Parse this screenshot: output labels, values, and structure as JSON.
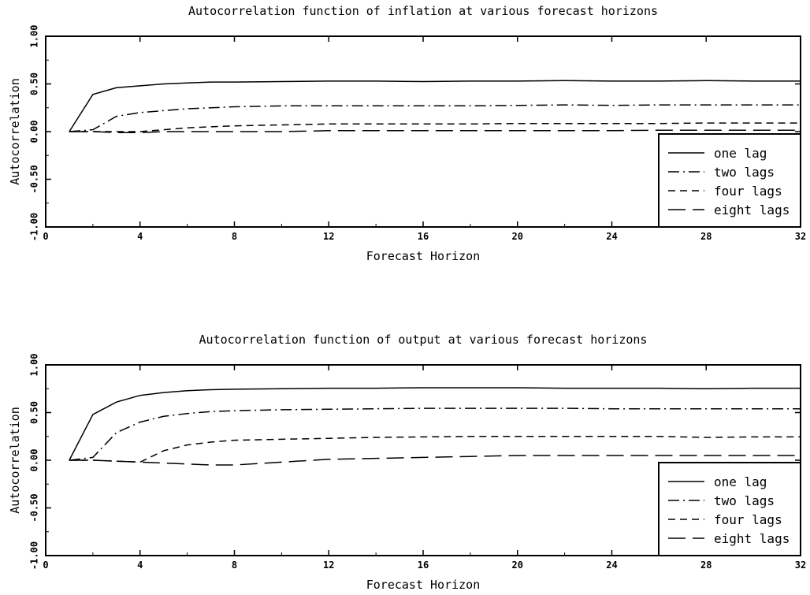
{
  "chart_data": [
    {
      "type": "line",
      "title": "Autocorrelation function of inflation at various forecast horizons",
      "xlabel": "Forecast Horizon",
      "ylabel": "Autocorrelation",
      "xlim": [
        0,
        32
      ],
      "ylim": [
        -1.0,
        1.0
      ],
      "xticks": [
        0,
        4,
        8,
        12,
        16,
        20,
        24,
        28,
        32
      ],
      "xtick_labels": [
        "0",
        "4",
        "8",
        "12",
        "16",
        "20",
        "24",
        "28",
        "32"
      ],
      "yticks": [
        -1.0,
        -0.5,
        0.0,
        0.5,
        1.0
      ],
      "ytick_labels": [
        "-1.00",
        "-0.50",
        "0.00",
        "0.50",
        "1.00"
      ],
      "grid": false,
      "legend_position": "bottom-right",
      "series": [
        {
          "name": "one lag",
          "dash": "solid",
          "x": [
            1,
            2,
            3,
            4,
            5,
            6,
            7,
            8,
            10,
            12,
            14,
            16,
            18,
            20,
            22,
            24,
            26,
            28,
            30,
            32
          ],
          "values": [
            0.0,
            0.39,
            0.46,
            0.48,
            0.5,
            0.51,
            0.52,
            0.52,
            0.525,
            0.53,
            0.53,
            0.525,
            0.53,
            0.53,
            0.535,
            0.53,
            0.53,
            0.535,
            0.53,
            0.53
          ]
        },
        {
          "name": "two lags",
          "dash": "dashdot",
          "x": [
            1,
            2,
            3,
            4,
            5,
            6,
            7,
            8,
            10,
            12,
            14,
            16,
            18,
            20,
            22,
            24,
            26,
            28,
            30,
            32
          ],
          "values": [
            0.0,
            0.02,
            0.16,
            0.2,
            0.22,
            0.24,
            0.25,
            0.26,
            0.27,
            0.27,
            0.27,
            0.27,
            0.27,
            0.275,
            0.28,
            0.275,
            0.28,
            0.28,
            0.28,
            0.28
          ]
        },
        {
          "name": "four lags",
          "dash": "dashed",
          "x": [
            1,
            2,
            3,
            4,
            5,
            6,
            7,
            8,
            10,
            12,
            14,
            16,
            18,
            20,
            22,
            24,
            26,
            28,
            30,
            32
          ],
          "values": [
            0.0,
            0.0,
            0.0,
            0.0,
            0.02,
            0.04,
            0.05,
            0.06,
            0.07,
            0.08,
            0.08,
            0.08,
            0.08,
            0.085,
            0.085,
            0.085,
            0.085,
            0.09,
            0.09,
            0.09
          ]
        },
        {
          "name": "eight lags",
          "dash": "longdash",
          "x": [
            1,
            2,
            3,
            4,
            5,
            6,
            7,
            8,
            10,
            12,
            14,
            16,
            18,
            20,
            22,
            24,
            26,
            28,
            30,
            32
          ],
          "values": [
            0.0,
            0.0,
            -0.01,
            -0.01,
            0.0,
            0.0,
            0.0,
            0.0,
            0.0,
            0.01,
            0.01,
            0.01,
            0.01,
            0.01,
            0.01,
            0.01,
            0.015,
            0.015,
            0.015,
            0.015
          ]
        }
      ]
    },
    {
      "type": "line",
      "title": "Autocorrelation function of output at various forecast horizons",
      "xlabel": "Forecast Horizon",
      "ylabel": "Autocorrelation",
      "xlim": [
        0,
        32
      ],
      "ylim": [
        -1.0,
        1.0
      ],
      "xticks": [
        0,
        4,
        8,
        12,
        16,
        20,
        24,
        28,
        32
      ],
      "xtick_labels": [
        "0",
        "4",
        "8",
        "12",
        "16",
        "20",
        "24",
        "28",
        "32"
      ],
      "yticks": [
        -1.0,
        -0.5,
        0.0,
        0.5,
        1.0
      ],
      "ytick_labels": [
        "-1.00",
        "-0.50",
        "0.00",
        "0.50",
        "1.00"
      ],
      "grid": false,
      "legend_position": "bottom-right",
      "series": [
        {
          "name": "one lag",
          "dash": "solid",
          "x": [
            1,
            2,
            3,
            4,
            5,
            6,
            7,
            8,
            10,
            12,
            14,
            16,
            18,
            20,
            22,
            24,
            26,
            28,
            30,
            32
          ],
          "values": [
            0.0,
            0.48,
            0.61,
            0.68,
            0.71,
            0.73,
            0.74,
            0.745,
            0.75,
            0.755,
            0.755,
            0.76,
            0.76,
            0.76,
            0.755,
            0.755,
            0.755,
            0.75,
            0.755,
            0.755
          ]
        },
        {
          "name": "two lags",
          "dash": "dashdot",
          "x": [
            1,
            2,
            3,
            4,
            5,
            6,
            7,
            8,
            10,
            12,
            14,
            16,
            18,
            20,
            22,
            24,
            26,
            28,
            30,
            32
          ],
          "values": [
            0.0,
            0.03,
            0.29,
            0.4,
            0.46,
            0.49,
            0.51,
            0.52,
            0.53,
            0.535,
            0.54,
            0.545,
            0.545,
            0.545,
            0.545,
            0.54,
            0.54,
            0.54,
            0.54,
            0.54
          ]
        },
        {
          "name": "four lags",
          "dash": "dashed",
          "x": [
            1,
            2,
            3,
            4,
            5,
            6,
            7,
            8,
            10,
            12,
            14,
            16,
            18,
            20,
            22,
            24,
            26,
            28,
            30,
            32
          ],
          "values": [
            0.0,
            0.0,
            -0.01,
            -0.02,
            0.1,
            0.16,
            0.19,
            0.21,
            0.22,
            0.23,
            0.24,
            0.245,
            0.25,
            0.25,
            0.25,
            0.25,
            0.25,
            0.24,
            0.245,
            0.245
          ]
        },
        {
          "name": "eight lags",
          "dash": "longdash",
          "x": [
            1,
            2,
            3,
            4,
            5,
            6,
            7,
            8,
            10,
            12,
            14,
            16,
            18,
            20,
            22,
            24,
            26,
            28,
            30,
            32
          ],
          "values": [
            0.0,
            0.0,
            -0.01,
            -0.02,
            -0.03,
            -0.04,
            -0.05,
            -0.05,
            -0.02,
            0.01,
            0.02,
            0.03,
            0.04,
            0.05,
            0.05,
            0.05,
            0.05,
            0.05,
            0.05,
            0.05
          ]
        }
      ]
    }
  ]
}
